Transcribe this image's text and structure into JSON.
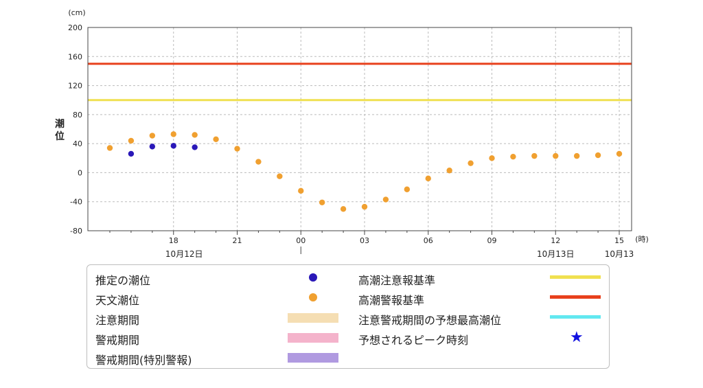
{
  "chart_data": {
    "type": "scatter",
    "ylabel": "潮位",
    "y_unit": "(cm)",
    "x_unit": "(時)",
    "ylim": [
      -80,
      200
    ],
    "y_ticks": [
      "200",
      "160",
      "120",
      "80",
      "40",
      "0",
      "-40",
      "-80"
    ],
    "y_tick_values": [
      200,
      160,
      120,
      80,
      40,
      0,
      -40,
      -80
    ],
    "x_ticks": [
      {
        "label": "18",
        "hour": 18
      },
      {
        "label": "21",
        "hour": 21
      },
      {
        "label": "00",
        "hour": 24
      },
      {
        "label": "03",
        "hour": 27
      },
      {
        "label": "06",
        "hour": 30
      },
      {
        "label": "09",
        "hour": 33
      },
      {
        "label": "12",
        "hour": 36
      },
      {
        "label": "15",
        "hour": 39
      }
    ],
    "date_labels": [
      {
        "label": "10月12日",
        "hour": 18.5
      },
      {
        "label": "10月13日",
        "hour": 36
      },
      {
        "label": "10月13",
        "hour": 39
      }
    ],
    "grid": true,
    "reference_lines": [
      {
        "name": "高潮警報基準",
        "value": 150,
        "color": "#e8401c"
      },
      {
        "name": "高潮注意報基準",
        "value": 100,
        "color": "#f0e050"
      }
    ],
    "series": [
      {
        "name": "天文潮位",
        "color": "#f0a030",
        "hours": [
          15,
          16,
          17,
          18,
          19,
          20,
          21,
          22,
          23,
          24,
          25,
          26,
          27,
          28,
          29,
          30,
          31,
          32,
          33,
          34,
          35,
          36,
          37,
          38,
          39
        ],
        "values": [
          34,
          44,
          51,
          53,
          52,
          46,
          33,
          15,
          -5,
          -25,
          -41,
          -50,
          -47,
          -37,
          -23,
          -8,
          3,
          13,
          20,
          22,
          23,
          23,
          23,
          24,
          26
        ]
      },
      {
        "name": "推定の潮位",
        "color": "#2a18b8",
        "hours": [
          16,
          17,
          18,
          19
        ],
        "values": [
          26,
          36,
          37,
          35
        ]
      }
    ]
  },
  "legend": {
    "estimated": "推定の潮位",
    "astronomical": "天文潮位",
    "caution_period": "注意期間",
    "warning_period": "警戒期間",
    "special_warning_period": "警戒期間(特別警報)",
    "advisory_standard": "高潮注意報基準",
    "warning_standard": "高潮警報基準",
    "forecast_max": "注意警戒期間の予想最高潮位",
    "peak_time": "予想されるピーク時刻",
    "colors": {
      "caution_period": "#f5deb3",
      "warning_period": "#f4b3cb",
      "special_warning_period": "#b09ae0",
      "forecast_max": "#62e8f0",
      "peak_star": "#1010e0"
    }
  }
}
